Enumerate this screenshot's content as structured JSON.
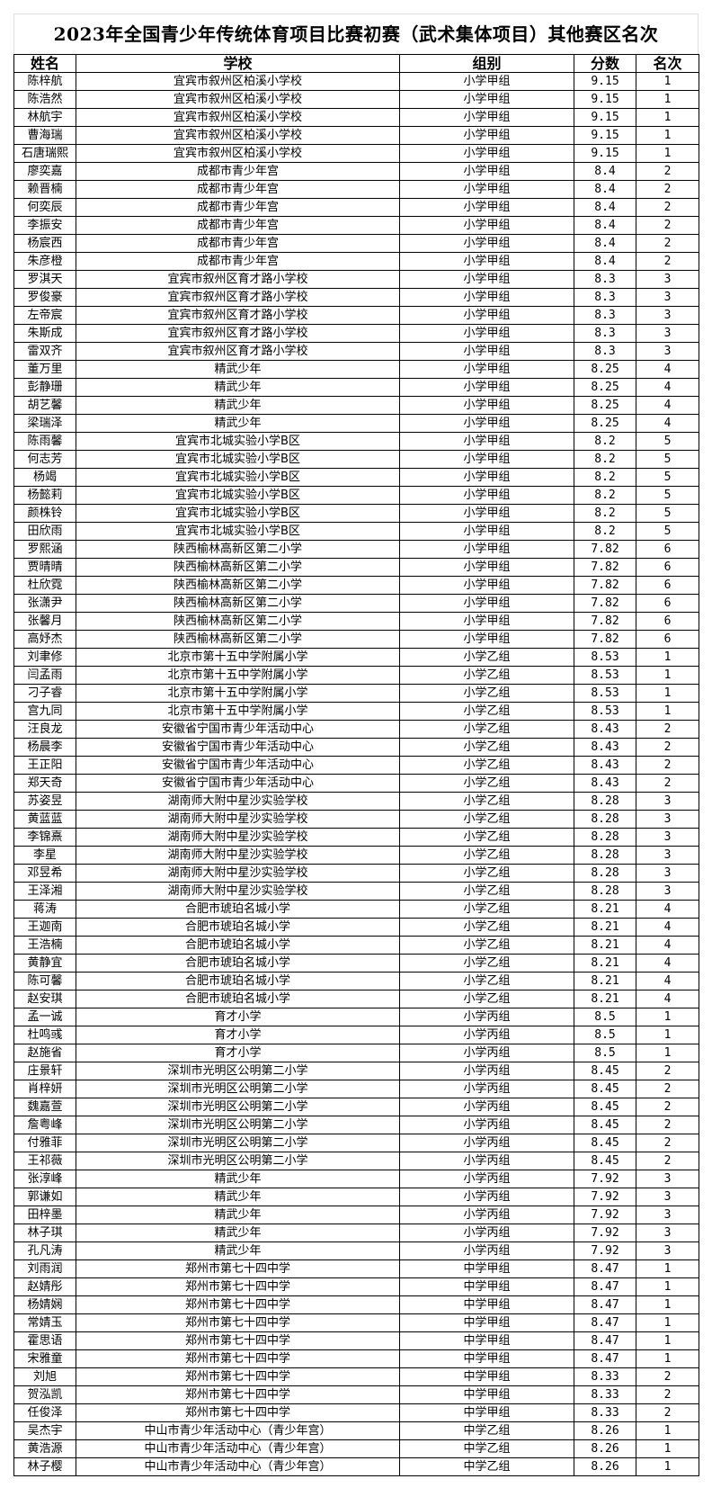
{
  "title": "2023年全国青少年传统体育项目比赛初赛（武术集体项目）其他赛区名次",
  "columns": [
    "姓名",
    "学校",
    "组别",
    "分数",
    "名次"
  ],
  "rows": [
    [
      "陈梓航",
      "宜宾市叙州区柏溪小学校",
      "小学甲组",
      "9.15",
      "1"
    ],
    [
      "陈浩然",
      "宜宾市叙州区柏溪小学校",
      "小学甲组",
      "9.15",
      "1"
    ],
    [
      "林航宇",
      "宜宾市叙州区柏溪小学校",
      "小学甲组",
      "9.15",
      "1"
    ],
    [
      "曹海瑞",
      "宜宾市叙州区柏溪小学校",
      "小学甲组",
      "9.15",
      "1"
    ],
    [
      "石唐瑞熙",
      "宜宾市叙州区柏溪小学校",
      "小学甲组",
      "9.15",
      "1"
    ],
    [
      "廖奕嘉",
      "成都市青少年宫",
      "小学甲组",
      "8.4",
      "2"
    ],
    [
      "赖晋楠",
      "成都市青少年宫",
      "小学甲组",
      "8.4",
      "2"
    ],
    [
      "何奕辰",
      "成都市青少年宫",
      "小学甲组",
      "8.4",
      "2"
    ],
    [
      "李振安",
      "成都市青少年宫",
      "小学甲组",
      "8.4",
      "2"
    ],
    [
      "杨宸西",
      "成都市青少年宫",
      "小学甲组",
      "8.4",
      "2"
    ],
    [
      "朱彦橙",
      "成都市青少年宫",
      "小学甲组",
      "8.4",
      "2"
    ],
    [
      "罗淇天",
      "宜宾市叙州区育才路小学校",
      "小学甲组",
      "8.3",
      "3"
    ],
    [
      "罗俊豪",
      "宜宾市叙州区育才路小学校",
      "小学甲组",
      "8.3",
      "3"
    ],
    [
      "左帝宸",
      "宜宾市叙州区育才路小学校",
      "小学甲组",
      "8.3",
      "3"
    ],
    [
      "朱斯成",
      "宜宾市叙州区育才路小学校",
      "小学甲组",
      "8.3",
      "3"
    ],
    [
      "雷双齐",
      "宜宾市叙州区育才路小学校",
      "小学甲组",
      "8.3",
      "3"
    ],
    [
      "董万里",
      "精武少年",
      "小学甲组",
      "8.25",
      "4"
    ],
    [
      "彭静珊",
      "精武少年",
      "小学甲组",
      "8.25",
      "4"
    ],
    [
      "胡艺馨",
      "精武少年",
      "小学甲组",
      "8.25",
      "4"
    ],
    [
      "梁瑞泽",
      "精武少年",
      "小学甲组",
      "8.25",
      "4"
    ],
    [
      "陈雨馨",
      "宜宾市北城实验小学B区",
      "小学甲组",
      "8.2",
      "5"
    ],
    [
      "何志芳",
      "宜宾市北城实验小学B区",
      "小学甲组",
      "8.2",
      "5"
    ],
    [
      "杨竭",
      "宜宾市北城实验小学B区",
      "小学甲组",
      "8.2",
      "5"
    ],
    [
      "杨懿莉",
      "宜宾市北城实验小学B区",
      "小学甲组",
      "8.2",
      "5"
    ],
    [
      "颜株铃",
      "宜宾市北城实验小学B区",
      "小学甲组",
      "8.2",
      "5"
    ],
    [
      "田欣雨",
      "宜宾市北城实验小学B区",
      "小学甲组",
      "8.2",
      "5"
    ],
    [
      "罗熙涵",
      "陕西榆林高新区第二小学",
      "小学甲组",
      "7.82",
      "6"
    ],
    [
      "贾晴晴",
      "陕西榆林高新区第二小学",
      "小学甲组",
      "7.82",
      "6"
    ],
    [
      "杜欣霓",
      "陕西榆林高新区第二小学",
      "小学甲组",
      "7.82",
      "6"
    ],
    [
      "张潇尹",
      "陕西榆林高新区第二小学",
      "小学甲组",
      "7.82",
      "6"
    ],
    [
      "张馨月",
      "陕西榆林高新区第二小学",
      "小学甲组",
      "7.82",
      "6"
    ],
    [
      "高妤杰",
      "陕西榆林高新区第二小学",
      "小学甲组",
      "7.82",
      "6"
    ],
    [
      "刘聿修",
      "北京市第十五中学附属小学",
      "小学乙组",
      "8.53",
      "1"
    ],
    [
      "闫孟雨",
      "北京市第十五中学附属小学",
      "小学乙组",
      "8.53",
      "1"
    ],
    [
      "刁子睿",
      "北京市第十五中学附属小学",
      "小学乙组",
      "8.53",
      "1"
    ],
    [
      "宫九同",
      "北京市第十五中学附属小学",
      "小学乙组",
      "8.53",
      "1"
    ],
    [
      "汪良龙",
      "安徽省宁国市青少年活动中心",
      "小学乙组",
      "8.43",
      "2"
    ],
    [
      "杨晨李",
      "安徽省宁国市青少年活动中心",
      "小学乙组",
      "8.43",
      "2"
    ],
    [
      "王正阳",
      "安徽省宁国市青少年活动中心",
      "小学乙组",
      "8.43",
      "2"
    ],
    [
      "郑天奇",
      "安徽省宁国市青少年活动中心",
      "小学乙组",
      "8.43",
      "2"
    ],
    [
      "苏姿昱",
      "湖南师大附中星沙实验学校",
      "小学乙组",
      "8.28",
      "3"
    ],
    [
      "黄蓝蓝",
      "湖南师大附中星沙实验学校",
      "小学乙组",
      "8.28",
      "3"
    ],
    [
      "李锦熹",
      "湖南师大附中星沙实验学校",
      "小学乙组",
      "8.28",
      "3"
    ],
    [
      "李星",
      "湖南师大附中星沙实验学校",
      "小学乙组",
      "8.28",
      "3"
    ],
    [
      "邓昱希",
      "湖南师大附中星沙实验学校",
      "小学乙组",
      "8.28",
      "3"
    ],
    [
      "王泽湘",
      "湖南师大附中星沙实验学校",
      "小学乙组",
      "8.28",
      "3"
    ],
    [
      "蒋涛",
      "合肥市琥珀名城小学",
      "小学乙组",
      "8.21",
      "4"
    ],
    [
      "王迦南",
      "合肥市琥珀名城小学",
      "小学乙组",
      "8.21",
      "4"
    ],
    [
      "王浩楠",
      "合肥市琥珀名城小学",
      "小学乙组",
      "8.21",
      "4"
    ],
    [
      "黄静宜",
      "合肥市琥珀名城小学",
      "小学乙组",
      "8.21",
      "4"
    ],
    [
      "陈可馨",
      "合肥市琥珀名城小学",
      "小学乙组",
      "8.21",
      "4"
    ],
    [
      "赵安琪",
      "合肥市琥珀名城小学",
      "小学乙组",
      "8.21",
      "4"
    ],
    [
      "孟一诚",
      "育才小学",
      "小学丙组",
      "8.5",
      "1"
    ],
    [
      "杜鸣彧",
      "育才小学",
      "小学丙组",
      "8.5",
      "1"
    ],
    [
      "赵施省",
      "育才小学",
      "小学丙组",
      "8.5",
      "1"
    ],
    [
      "庄景轩",
      "深圳市光明区公明第二小学",
      "小学丙组",
      "8.45",
      "2"
    ],
    [
      "肖梓妍",
      "深圳市光明区公明第二小学",
      "小学丙组",
      "8.45",
      "2"
    ],
    [
      "魏嘉萱",
      "深圳市光明区公明第二小学",
      "小学丙组",
      "8.45",
      "2"
    ],
    [
      "詹粤峰",
      "深圳市光明区公明第二小学",
      "小学丙组",
      "8.45",
      "2"
    ],
    [
      "付雅菲",
      "深圳市光明区公明第二小学",
      "小学丙组",
      "8.45",
      "2"
    ],
    [
      "王祁薇",
      "深圳市光明区公明第二小学",
      "小学丙组",
      "8.45",
      "2"
    ],
    [
      "张淳峰",
      "精武少年",
      "小学丙组",
      "7.92",
      "3"
    ],
    [
      "郭谦如",
      "精武少年",
      "小学丙组",
      "7.92",
      "3"
    ],
    [
      "田梓墨",
      "精武少年",
      "小学丙组",
      "7.92",
      "3"
    ],
    [
      "林子琪",
      "精武少年",
      "小学丙组",
      "7.92",
      "3"
    ],
    [
      "孔凡涛",
      "精武少年",
      "小学丙组",
      "7.92",
      "3"
    ],
    [
      "刘雨润",
      "郑州市第七十四中学",
      "中学甲组",
      "8.47",
      "1"
    ],
    [
      "赵婧彤",
      "郑州市第七十四中学",
      "中学甲组",
      "8.47",
      "1"
    ],
    [
      "杨婧娴",
      "郑州市第七十四中学",
      "中学甲组",
      "8.47",
      "1"
    ],
    [
      "常婧玉",
      "郑州市第七十四中学",
      "中学甲组",
      "8.47",
      "1"
    ],
    [
      "霍思语",
      "郑州市第七十四中学",
      "中学甲组",
      "8.47",
      "1"
    ],
    [
      "宋雅童",
      "郑州市第七十四中学",
      "中学甲组",
      "8.47",
      "1"
    ],
    [
      "刘旭",
      "郑州市第七十四中学",
      "中学甲组",
      "8.33",
      "2"
    ],
    [
      "贺泓凯",
      "郑州市第七十四中学",
      "中学甲组",
      "8.33",
      "2"
    ],
    [
      "任俊泽",
      "郑州市第七十四中学",
      "中学甲组",
      "8.33",
      "2"
    ],
    [
      "吴杰宇",
      "中山市青少年活动中心（青少年宫）",
      "中学乙组",
      "8.26",
      "1"
    ],
    [
      "黄浩源",
      "中山市青少年活动中心（青少年宫）",
      "中学乙组",
      "8.26",
      "1"
    ],
    [
      "林子樱",
      "中山市青少年活动中心（青少年宫）",
      "中学乙组",
      "8.26",
      "1"
    ]
  ]
}
